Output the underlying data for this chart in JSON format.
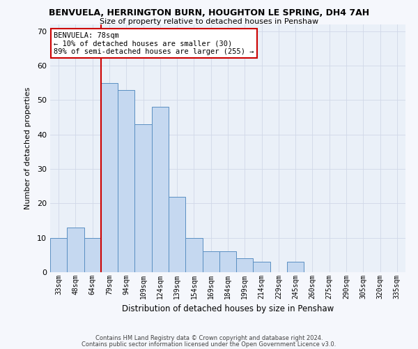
{
  "title1": "BENVUELA, HERRINGTON BURN, HOUGHTON LE SPRING, DH4 7AH",
  "title2": "Size of property relative to detached houses in Penshaw",
  "xlabel": "Distribution of detached houses by size in Penshaw",
  "ylabel": "Number of detached properties",
  "categories": [
    "33sqm",
    "48sqm",
    "64sqm",
    "79sqm",
    "94sqm",
    "109sqm",
    "124sqm",
    "139sqm",
    "154sqm",
    "169sqm",
    "184sqm",
    "199sqm",
    "214sqm",
    "229sqm",
    "245sqm",
    "260sqm",
    "275sqm",
    "290sqm",
    "305sqm",
    "320sqm",
    "335sqm"
  ],
  "values": [
    10,
    13,
    10,
    55,
    53,
    43,
    48,
    22,
    10,
    6,
    6,
    4,
    3,
    0,
    3,
    0,
    0,
    0,
    0,
    0,
    0
  ],
  "bar_color": "#c5d8f0",
  "bar_edge_color": "#5a8fc2",
  "property_line_idx": 3,
  "annotation_title": "BENVUELA: 78sqm",
  "annotation_line1": "← 10% of detached houses are smaller (30)",
  "annotation_line2": "89% of semi-detached houses are larger (255) →",
  "annotation_box_color": "#ffffff",
  "annotation_box_edge": "#cc0000",
  "vline_color": "#cc0000",
  "ylim": [
    0,
    72
  ],
  "yticks": [
    0,
    10,
    20,
    30,
    40,
    50,
    60,
    70
  ],
  "grid_color": "#d0d8e8",
  "background_color": "#eaf0f8",
  "fig_background": "#f5f7fc",
  "footer1": "Contains HM Land Registry data © Crown copyright and database right 2024.",
  "footer2": "Contains public sector information licensed under the Open Government Licence v3.0."
}
